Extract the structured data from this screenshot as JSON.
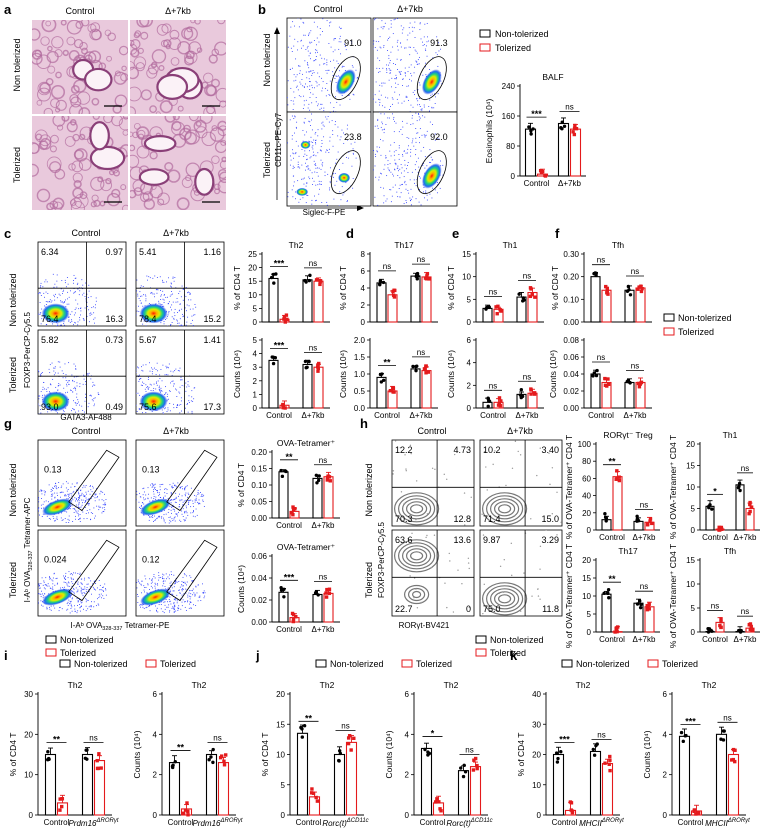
{
  "colors": {
    "nontol": "#000000",
    "tol": "#e41a1c",
    "he_bg": "#e9c9dc",
    "he_tissue": "#b06a9c"
  },
  "legend": {
    "nontol": "Non-tolerized",
    "tol": "Tolerized"
  },
  "groups": {
    "control": "Control",
    "d7kb": "Δ+7kb"
  },
  "rows": {
    "nontol": "Non tolerized",
    "tol": "Tolerized"
  },
  "panels": {
    "a": {
      "letter": "a"
    },
    "b": {
      "letter": "b",
      "xaxis": "Siglec-F-PE",
      "yaxis": "CD11c-PE-Cy7",
      "gates": [
        "91.0",
        "91.3",
        "23.8",
        "92.0"
      ],
      "bar_title": "BALF",
      "bar_ylabel": "Eosinophils (10⁴)"
    },
    "c": {
      "letter": "c",
      "xaxis": "GATA3-AF488",
      "yaxis": "FOXP3-PerCP-Cy5.5",
      "quads": [
        [
          "6.34",
          "0.97",
          "76.4",
          "16.3"
        ],
        [
          "5.41",
          "1.16",
          "78.4",
          "15.2"
        ],
        [
          "5.82",
          "0.73",
          "93.0",
          "0.49"
        ],
        [
          "5.67",
          "1.41",
          "75.6",
          "17.3"
        ]
      ]
    },
    "d": {
      "letter": "d"
    },
    "e": {
      "letter": "e"
    },
    "f": {
      "letter": "f"
    },
    "g": {
      "letter": "g",
      "xaxis": "I-Aᵇ OVA328-337 Tetramer-PE",
      "yaxis1": "I-Aᵇ OVA328-337",
      "yaxis2": "Tetramer-APC",
      "gates": [
        "0.13",
        "0.13",
        "0.024",
        "0.12"
      ]
    },
    "h": {
      "letter": "h",
      "xaxis": "RORγt-BV421",
      "yaxis": "FOXP3-PerCP-Cy5.5",
      "quads": [
        [
          "12.2",
          "4.73",
          "70.3",
          "12.8"
        ],
        [
          "10.2",
          "3.40",
          "71.4",
          "15.0"
        ],
        [
          "63.6",
          "13.6",
          "22.7",
          "0"
        ],
        [
          "9.87",
          "3.29",
          "75.0",
          "11.8"
        ]
      ]
    },
    "i": {
      "letter": "i"
    },
    "j": {
      "letter": "j"
    },
    "k": {
      "letter": "k"
    }
  },
  "chart_data": [
    {
      "id": "b_balf",
      "type": "bar",
      "title": "BALF",
      "ylabel": "Eosinophils (10⁴)",
      "categories": [
        "Control",
        "Δ+7kb"
      ],
      "ylim": [
        0,
        240
      ],
      "yticks": [
        0,
        80,
        160,
        240
      ],
      "series": [
        {
          "name": "Non-tolerized",
          "values": [
            125,
            140
          ]
        },
        {
          "name": "Tolerized",
          "values": [
            5,
            125
          ]
        }
      ],
      "sig": [
        "***",
        "ns"
      ]
    },
    {
      "id": "c_pct",
      "type": "bar",
      "title": "Th2",
      "ylabel": "% of CD4 T",
      "categories": [
        "Control",
        "Δ+7kb"
      ],
      "ylim": [
        0,
        25
      ],
      "yticks": [
        0,
        5,
        10,
        15,
        20,
        25
      ],
      "series": [
        {
          "name": "Non-tolerized",
          "values": [
            16,
            15.5
          ]
        },
        {
          "name": "Tolerized",
          "values": [
            1,
            15
          ]
        }
      ],
      "sig": [
        "***",
        "ns"
      ]
    },
    {
      "id": "c_cnt",
      "type": "bar",
      "title": "",
      "ylabel": "Counts (10⁴)",
      "categories": [
        "Control",
        "Δ+7kb"
      ],
      "ylim": [
        0,
        5
      ],
      "yticks": [
        0,
        1,
        2,
        3,
        4,
        5
      ],
      "series": [
        {
          "name": "Non-tolerized",
          "values": [
            3.5,
            3.2
          ]
        },
        {
          "name": "Tolerized",
          "values": [
            0.2,
            3.0
          ]
        }
      ],
      "sig": [
        "***",
        "ns"
      ]
    },
    {
      "id": "d_pct",
      "type": "bar",
      "title": "Th17",
      "ylabel": "% of CD4 T",
      "categories": [
        "Control",
        "Δ+7kb"
      ],
      "ylim": [
        0,
        8
      ],
      "yticks": [
        0,
        2,
        4,
        6,
        8
      ],
      "series": [
        {
          "name": "Non-tolerized",
          "values": [
            4.6,
            5.4
          ]
        },
        {
          "name": "Tolerized",
          "values": [
            3.2,
            5.3
          ]
        }
      ],
      "sig": [
        "ns",
        "ns"
      ]
    },
    {
      "id": "d_cnt",
      "type": "bar",
      "title": "",
      "ylabel": "Counts (10⁴)",
      "categories": [
        "Control",
        "Δ+7kb"
      ],
      "ylim": [
        0,
        2.0
      ],
      "yticks": [
        0.0,
        0.5,
        1.0,
        1.5,
        2.0
      ],
      "series": [
        {
          "name": "Non-tolerized",
          "values": [
            0.9,
            1.15
          ]
        },
        {
          "name": "Tolerized",
          "values": [
            0.5,
            1.1
          ]
        }
      ],
      "sig": [
        "**",
        "ns"
      ]
    },
    {
      "id": "e_pct",
      "type": "bar",
      "title": "Th1",
      "ylabel": "% of CD4 T",
      "categories": [
        "Control",
        "Δ+7kb"
      ],
      "ylim": [
        0,
        15
      ],
      "yticks": [
        0,
        5,
        10,
        15
      ],
      "series": [
        {
          "name": "Non-tolerized",
          "values": [
            3,
            5.5
          ]
        },
        {
          "name": "Tolerized",
          "values": [
            2.8,
            6.5
          ]
        }
      ],
      "sig": [
        "ns",
        "ns"
      ]
    },
    {
      "id": "e_cnt",
      "type": "bar",
      "title": "",
      "ylabel": "Counts (10⁴)",
      "categories": [
        "Control",
        "Δ+7kb"
      ],
      "ylim": [
        0,
        6
      ],
      "yticks": [
        0,
        2,
        4,
        6
      ],
      "series": [
        {
          "name": "Non-tolerized",
          "values": [
            0.5,
            1.2
          ]
        },
        {
          "name": "Tolerized",
          "values": [
            0.5,
            1.3
          ]
        }
      ],
      "sig": [
        "ns",
        "ns"
      ]
    },
    {
      "id": "f_pct",
      "type": "bar",
      "title": "Tfh",
      "ylabel": "% of CD4 T",
      "categories": [
        "Control",
        "Δ+7kb"
      ],
      "ylim": [
        0,
        0.3
      ],
      "yticks": [
        0.0,
        0.1,
        0.2,
        0.3
      ],
      "series": [
        {
          "name": "Non-tolerized",
          "values": [
            0.2,
            0.14
          ]
        },
        {
          "name": "Tolerized",
          "values": [
            0.14,
            0.15
          ]
        }
      ],
      "sig": [
        "ns",
        "ns"
      ]
    },
    {
      "id": "f_cnt",
      "type": "bar",
      "title": "",
      "ylabel": "Counts (10⁴)",
      "categories": [
        "Control",
        "Δ+7kb"
      ],
      "ylim": [
        0,
        0.08
      ],
      "yticks": [
        0.0,
        0.02,
        0.04,
        0.06,
        0.08
      ],
      "series": [
        {
          "name": "Non-tolerized",
          "values": [
            0.04,
            0.03
          ]
        },
        {
          "name": "Tolerized",
          "values": [
            0.03,
            0.03
          ]
        }
      ],
      "sig": [
        "ns",
        "ns"
      ]
    },
    {
      "id": "g_pct",
      "type": "bar",
      "title": "OVA-Tetramer⁺",
      "ylabel": "% of CD4 T",
      "categories": [
        "Control",
        "Δ+7kb"
      ],
      "ylim": [
        0,
        0.2
      ],
      "yticks": [
        0.0,
        0.05,
        0.1,
        0.15,
        0.2
      ],
      "series": [
        {
          "name": "Non-tolerized",
          "values": [
            0.14,
            0.12
          ]
        },
        {
          "name": "Tolerized",
          "values": [
            0.02,
            0.125
          ]
        }
      ],
      "sig": [
        "**",
        "ns"
      ]
    },
    {
      "id": "g_cnt",
      "type": "bar",
      "title": "OVA-Tetramer⁺",
      "ylabel": "Counts (10⁴)",
      "categories": [
        "Control",
        "Δ+7kb"
      ],
      "ylim": [
        0,
        0.06
      ],
      "yticks": [
        0.0,
        0.02,
        0.04,
        0.06
      ],
      "series": [
        {
          "name": "Non-tolerized",
          "values": [
            0.027,
            0.025
          ]
        },
        {
          "name": "Tolerized",
          "values": [
            0.004,
            0.026
          ]
        }
      ],
      "sig": [
        "***",
        "ns"
      ]
    },
    {
      "id": "h_treg",
      "type": "bar",
      "title": "RORγt⁻ Treg",
      "ylabel": "% of OVA-Tetramer⁺ CD4 T",
      "categories": [
        "Control",
        "Δ+7kb"
      ],
      "ylim": [
        0,
        100
      ],
      "yticks": [
        0,
        20,
        40,
        60,
        80,
        100
      ],
      "series": [
        {
          "name": "Non-tolerized",
          "values": [
            12,
            10
          ]
        },
        {
          "name": "Tolerized",
          "values": [
            62,
            9
          ]
        }
      ],
      "sig": [
        "**",
        "ns"
      ]
    },
    {
      "id": "h_th1",
      "type": "bar",
      "title": "Th1",
      "ylabel": "% of OVA-Tetramer⁺ CD4 T",
      "categories": [
        "Control",
        "Δ+7kb"
      ],
      "ylim": [
        0,
        20
      ],
      "yticks": [
        0,
        5,
        10,
        15,
        20
      ],
      "series": [
        {
          "name": "Non-tolerized",
          "values": [
            5.5,
            10.5
          ]
        },
        {
          "name": "Tolerized",
          "values": [
            0.2,
            5
          ]
        }
      ],
      "sig": [
        "*",
        "ns"
      ]
    },
    {
      "id": "h_th17",
      "type": "bar",
      "title": "Th17",
      "ylabel": "% of OVA-Tetramer⁺ CD4 T",
      "categories": [
        "Control",
        "Δ+7kb"
      ],
      "ylim": [
        0,
        20
      ],
      "yticks": [
        0,
        5,
        10,
        15,
        20
      ],
      "series": [
        {
          "name": "Non-tolerized",
          "values": [
            10.5,
            8
          ]
        },
        {
          "name": "Tolerized",
          "values": [
            0.1,
            7
          ]
        }
      ],
      "sig": [
        "**",
        "ns"
      ]
    },
    {
      "id": "h_tfh",
      "type": "bar",
      "title": "Tfh",
      "ylabel": "% of OVA-Tetramer⁺ CD4 T",
      "categories": [
        "Control",
        "Δ+7kb"
      ],
      "ylim": [
        0,
        15
      ],
      "yticks": [
        0,
        5,
        10,
        15
      ],
      "series": [
        {
          "name": "Non-tolerized",
          "values": [
            0.1,
            0.1
          ]
        },
        {
          "name": "Tolerized",
          "values": [
            2,
            0.8
          ]
        }
      ],
      "sig": [
        "ns",
        "ns"
      ]
    },
    {
      "id": "i_pct",
      "type": "bar",
      "title": "Th2",
      "ylabel": "% of CD4 T",
      "categories": [
        "Control",
        "Prdm16ΔRORγt"
      ],
      "ylim": [
        0,
        30
      ],
      "yticks": [
        0,
        10,
        20,
        30
      ],
      "series": [
        {
          "name": "Non-tolerized",
          "values": [
            15,
            15
          ]
        },
        {
          "name": "Tolerized",
          "values": [
            3,
            13.5
          ]
        }
      ],
      "sig": [
        "**",
        "ns"
      ]
    },
    {
      "id": "i_cnt",
      "type": "bar",
      "title": "Th2",
      "ylabel": "Counts (10⁴)",
      "categories": [
        "Control",
        "Prdm16ΔRORγt"
      ],
      "ylim": [
        0,
        6
      ],
      "yticks": [
        0,
        2,
        4,
        6
      ],
      "series": [
        {
          "name": "Non-tolerized",
          "values": [
            2.6,
            3
          ]
        },
        {
          "name": "Tolerized",
          "values": [
            0.3,
            2.6
          ]
        }
      ],
      "sig": [
        "**",
        "ns"
      ]
    },
    {
      "id": "j_pct",
      "type": "bar",
      "title": "Th2",
      "ylabel": "% of CD4 T",
      "categories": [
        "Control",
        "Rorc(t)ΔCD11c"
      ],
      "ylim": [
        0,
        20
      ],
      "yticks": [
        0,
        5,
        10,
        15,
        20
      ],
      "series": [
        {
          "name": "Non-tolerized",
          "values": [
            13.5,
            10
          ]
        },
        {
          "name": "Tolerized",
          "values": [
            3,
            12
          ]
        }
      ],
      "sig": [
        "**",
        "ns"
      ]
    },
    {
      "id": "j_cnt",
      "type": "bar",
      "title": "Th2",
      "ylabel": "Counts (10⁴)",
      "categories": [
        "Control",
        "Rorc(t)ΔCD11c"
      ],
      "ylim": [
        0,
        6
      ],
      "yticks": [
        0,
        2,
        4,
        6
      ],
      "series": [
        {
          "name": "Non-tolerized",
          "values": [
            3.3,
            2.2
          ]
        },
        {
          "name": "Tolerized",
          "values": [
            0.6,
            2.4
          ]
        }
      ],
      "sig": [
        "*",
        "ns"
      ]
    },
    {
      "id": "k_pct",
      "type": "bar",
      "title": "Th2",
      "ylabel": "% of CD4 T",
      "categories": [
        "Control",
        "MHCIIΔRORγt"
      ],
      "ylim": [
        0,
        40
      ],
      "yticks": [
        0,
        10,
        20,
        30,
        40
      ],
      "series": [
        {
          "name": "Non-tolerized",
          "values": [
            20,
            21
          ]
        },
        {
          "name": "Tolerized",
          "values": [
            1.5,
            17
          ]
        }
      ],
      "sig": [
        "***",
        "ns"
      ]
    },
    {
      "id": "k_cnt",
      "type": "bar",
      "title": "Th2",
      "ylabel": "Counts (10⁴)",
      "categories": [
        "Control",
        "MHCIIΔRORγt"
      ],
      "ylim": [
        0,
        6
      ],
      "yticks": [
        0,
        2,
        4,
        6
      ],
      "series": [
        {
          "name": "Non-tolerized",
          "values": [
            3.9,
            4
          ]
        },
        {
          "name": "Tolerized",
          "values": [
            0.2,
            3
          ]
        }
      ],
      "sig": [
        "***",
        "ns"
      ]
    }
  ]
}
